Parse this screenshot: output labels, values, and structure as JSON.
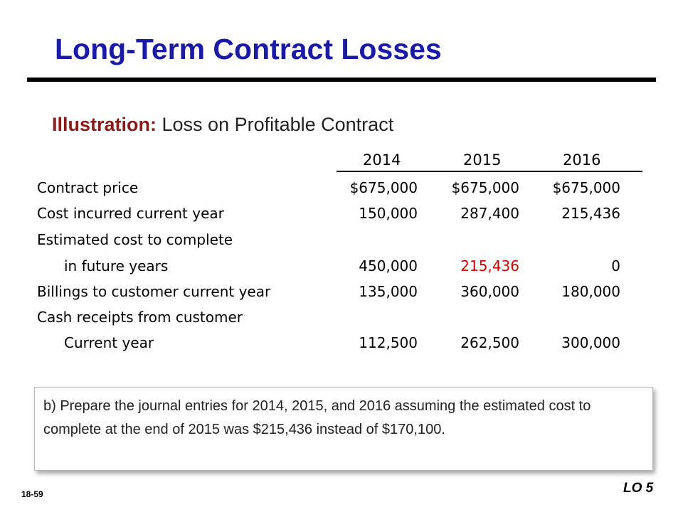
{
  "title": "Long-Term Contract Losses",
  "subtitle": {
    "lead": "Illustration:",
    "text": "Loss on Profitable Contract"
  },
  "table": {
    "years": [
      "2014",
      "2015",
      "2016"
    ],
    "rows": [
      {
        "label": "Contract price",
        "values": [
          "$675,000",
          "$675,000",
          "$675,000"
        ]
      },
      {
        "label": "Cost incurred current year",
        "values": [
          "150,000",
          "287,400",
          "215,436"
        ]
      },
      {
        "label": "Estimated cost to complete",
        "values": [
          "",
          "",
          ""
        ]
      },
      {
        "label": "in future years",
        "values": [
          "450,000",
          "215,436",
          "0"
        ],
        "highlight_color": "#cc0000"
      },
      {
        "label": "Billings to customer current year",
        "values": [
          "135,000",
          "360,000",
          "180,000"
        ]
      },
      {
        "label": "Cash receipts from customer",
        "values": [
          "",
          "",
          ""
        ]
      },
      {
        "label": "Current year",
        "values": [
          "112,500",
          "262,500",
          "300,000"
        ]
      }
    ]
  },
  "question": "b)  Prepare the journal entries for 2014, 2015, and 2016 assuming the estimated cost to complete at the end of 2015 was $215,436 instead of $170,100.",
  "footer": {
    "slide_number": "18-59",
    "lo": "LO 5"
  },
  "colors": {
    "title": "#1a1aa6",
    "illustration": "#8b1a1a",
    "highlight": "#cc0000"
  }
}
